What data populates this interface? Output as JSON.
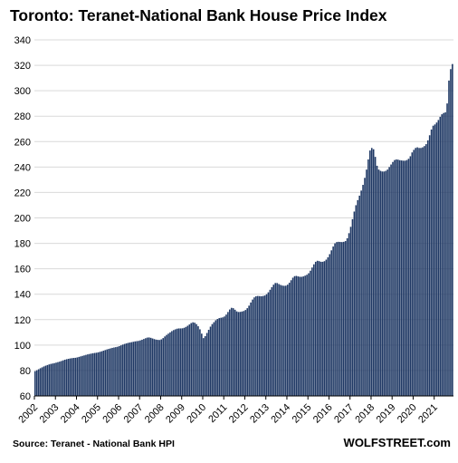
{
  "chart_data": {
    "type": "bar",
    "title": "Toronto:  Teranet-National  Bank House  Price Index",
    "source": "Source: Teranet - National Bank HPI",
    "brand": "WOLFSTREET.com",
    "xlabel": "",
    "ylabel": "",
    "ylim": [
      60,
      340
    ],
    "yticks": [
      60,
      80,
      100,
      120,
      140,
      160,
      180,
      200,
      220,
      240,
      260,
      280,
      300,
      320,
      340
    ],
    "xtick_labels": [
      "2002",
      "2003",
      "2004",
      "2005",
      "2006",
      "2007",
      "2008",
      "2009",
      "2010",
      "2011",
      "2012",
      "2013",
      "2014",
      "2015",
      "2016",
      "2017",
      "2018",
      "2019",
      "2020",
      "2021"
    ],
    "start_year": 2002,
    "grid": "horizontal",
    "bar_color": "#1f3864",
    "values": [
      79.5,
      80.2,
      81.0,
      81.8,
      82.5,
      83.2,
      83.8,
      84.3,
      84.8,
      85.2,
      85.5,
      85.8,
      86.2,
      86.6,
      87.0,
      87.5,
      88.0,
      88.5,
      88.9,
      89.2,
      89.5,
      89.7,
      89.9,
      90.0,
      90.3,
      90.7,
      91.1,
      91.5,
      91.9,
      92.3,
      92.7,
      93.0,
      93.3,
      93.6,
      93.8,
      94.0,
      94.3,
      94.7,
      95.1,
      95.6,
      96.1,
      96.6,
      97.0,
      97.4,
      97.8,
      98.1,
      98.4,
      98.7,
      99.2,
      99.8,
      100.4,
      100.9,
      101.3,
      101.7,
      102.0,
      102.3,
      102.6,
      102.9,
      103.1,
      103.3,
      103.7,
      104.2,
      104.8,
      105.4,
      105.9,
      106.0,
      105.7,
      105.2,
      104.7,
      104.3,
      104.1,
      104.0,
      104.5,
      105.5,
      106.8,
      108.0,
      109.0,
      110.0,
      111.0,
      111.8,
      112.4,
      112.9,
      113.1,
      113.1,
      113.2,
      113.6,
      114.3,
      115.2,
      116.2,
      117.3,
      117.9,
      117.6,
      116.5,
      114.8,
      112.4,
      109.0,
      105.5,
      107.0,
      109.5,
      112.0,
      114.5,
      116.5,
      118.0,
      119.5,
      120.5,
      121.2,
      121.5,
      121.8,
      122.5,
      124.0,
      126.0,
      128.0,
      129.3,
      129.0,
      127.8,
      126.5,
      126.0,
      126.1,
      126.4,
      126.8,
      127.6,
      129.0,
      131.0,
      133.5,
      135.8,
      137.5,
      138.4,
      138.6,
      138.5,
      138.4,
      138.6,
      139.0,
      140.0,
      141.5,
      143.5,
      145.5,
      147.5,
      148.8,
      148.8,
      148.0,
      147.3,
      146.8,
      146.6,
      146.7,
      147.5,
      149.0,
      151.0,
      153.0,
      154.2,
      154.4,
      154.0,
      153.7,
      153.7,
      154.0,
      154.6,
      155.3,
      156.5,
      158.5,
      161.0,
      163.5,
      165.5,
      166.3,
      166.0,
      165.5,
      165.5,
      166.0,
      167.2,
      169.0,
      171.5,
      174.5,
      177.5,
      180.0,
      181.0,
      181.2,
      181.1,
      181.0,
      181.2,
      181.8,
      184.0,
      188.0,
      193.0,
      199.0,
      205.0,
      210.0,
      214.0,
      217.5,
      221.5,
      226.0,
      231.5,
      238.0,
      246.0,
      253.0,
      255.0,
      254.0,
      248.0,
      241.0,
      238.0,
      237.0,
      236.5,
      236.5,
      237.0,
      238.0,
      240.0,
      242.0,
      244.0,
      245.5,
      246.0,
      245.8,
      245.4,
      245.2,
      245.0,
      245.0,
      245.5,
      246.5,
      248.5,
      251.5,
      253.5,
      255.0,
      255.5,
      255.0,
      255.0,
      255.5,
      256.5,
      258.0,
      261.0,
      265.0,
      269.5,
      272.5,
      273.5,
      275.0,
      277.0,
      279.5,
      281.5,
      282.5,
      283.0,
      290.0,
      308.0,
      317.0,
      321.0
    ]
  }
}
